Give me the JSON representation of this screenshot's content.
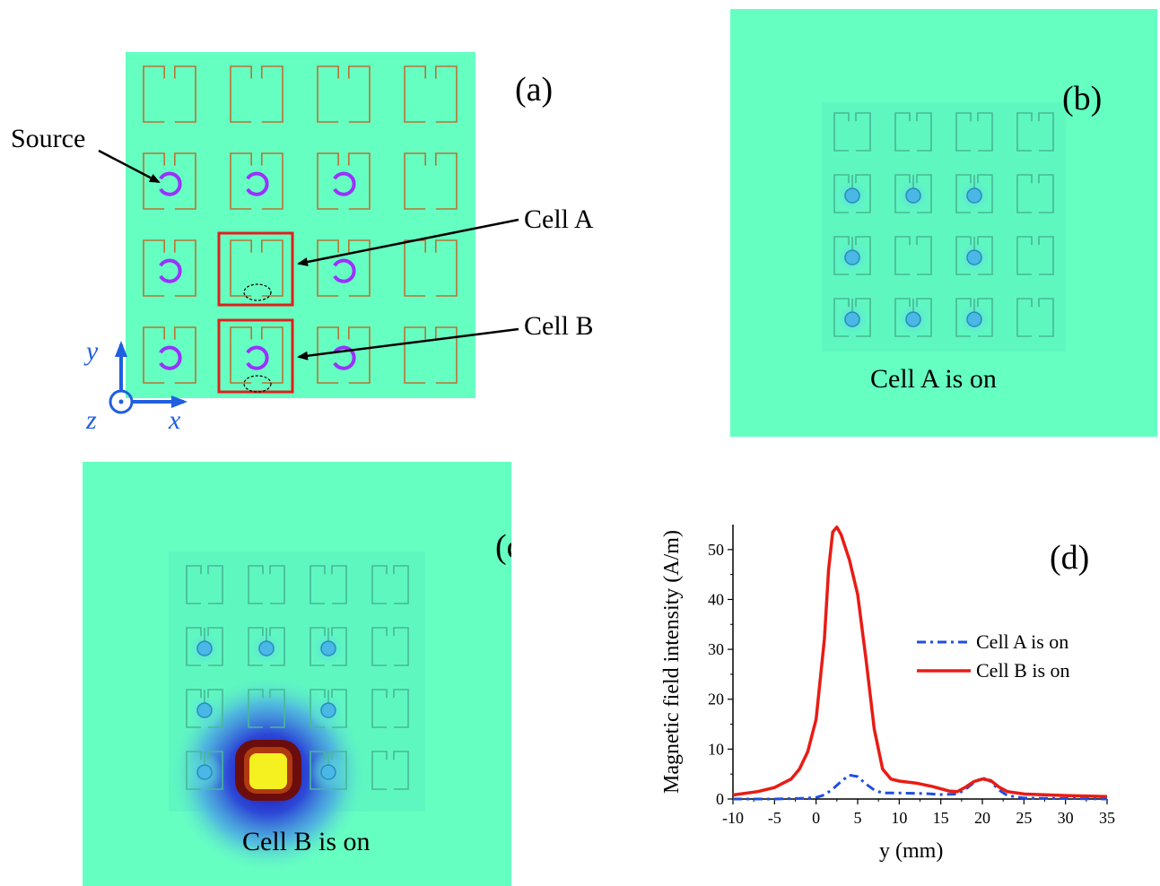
{
  "panel_a": {
    "label": "(a)",
    "callouts": {
      "source": "Source",
      "cell_a": "Cell A",
      "cell_b": "Cell B"
    },
    "axes": {
      "y": "y",
      "z": "z",
      "x": "x"
    },
    "grid": {
      "rows": 4,
      "cols": 4
    },
    "source_cells": [
      [
        1,
        0
      ],
      [
        1,
        1
      ],
      [
        1,
        2
      ],
      [
        2,
        0
      ],
      [
        2,
        2
      ],
      [
        3,
        0
      ],
      [
        3,
        1
      ],
      [
        3,
        2
      ]
    ],
    "colors": {
      "background": "#66ffc2",
      "resonator": "#b87333",
      "source": "#9b30ff",
      "highlight": "#e0201c",
      "axis": "#1f5fe0"
    }
  },
  "panel_b": {
    "label": "(b)",
    "caption": "Cell A is on",
    "colors": {
      "background": "#66ffc2"
    }
  },
  "panel_c": {
    "label": "(c)",
    "caption": "Cell B is on",
    "colors": {
      "background": "#66ffc2",
      "hotspot": "#f5f020",
      "ring": "#6b0d0d"
    }
  },
  "chart_data": {
    "type": "line",
    "label": "(d)",
    "xlabel": "y (mm)",
    "ylabel": "Magnetic field intensity (A/m)",
    "xlim": [
      -10,
      35
    ],
    "ylim": [
      0,
      55
    ],
    "xticks": [
      -10,
      -5,
      0,
      5,
      10,
      15,
      20,
      25,
      30,
      35
    ],
    "yticks": [
      0,
      10,
      20,
      30,
      40,
      50
    ],
    "legend_position": "right",
    "series": [
      {
        "name": "Cell A is on",
        "color": "#1f4fe0",
        "style": "dashdot",
        "x": [
          -10,
          -5,
          -2,
          0,
          1,
          2,
          3,
          4,
          5,
          6,
          7,
          8,
          10,
          13,
          15,
          17,
          18,
          19,
          20,
          21,
          22,
          23,
          25,
          30,
          35
        ],
        "y": [
          0,
          0,
          0.1,
          0.3,
          0.8,
          2.0,
          3.5,
          4.8,
          4.5,
          3.0,
          1.8,
          1.2,
          1.2,
          1.1,
          0.9,
          1.0,
          2.0,
          3.3,
          4.3,
          3.5,
          1.8,
          0.7,
          0.2,
          0.1,
          0
        ]
      },
      {
        "name": "Cell B is on",
        "color": "#e81c14",
        "style": "solid",
        "x": [
          -10,
          -7,
          -5,
          -3,
          -2,
          -1,
          0,
          1,
          1.5,
          2,
          2.5,
          3,
          4,
          5,
          6,
          7,
          8,
          9,
          10,
          12,
          14,
          16,
          17,
          18,
          19,
          20,
          21,
          22,
          23,
          25,
          30,
          35
        ],
        "y": [
          0.8,
          1.5,
          2.3,
          4.0,
          6.0,
          9.5,
          16.0,
          32.0,
          46.0,
          53.5,
          54.5,
          53.0,
          48.0,
          41.0,
          28.0,
          14.0,
          6.0,
          4.0,
          3.6,
          3.2,
          2.5,
          1.6,
          1.5,
          2.4,
          3.5,
          4.0,
          3.7,
          2.4,
          1.5,
          1.0,
          0.7,
          0.5
        ]
      }
    ]
  }
}
